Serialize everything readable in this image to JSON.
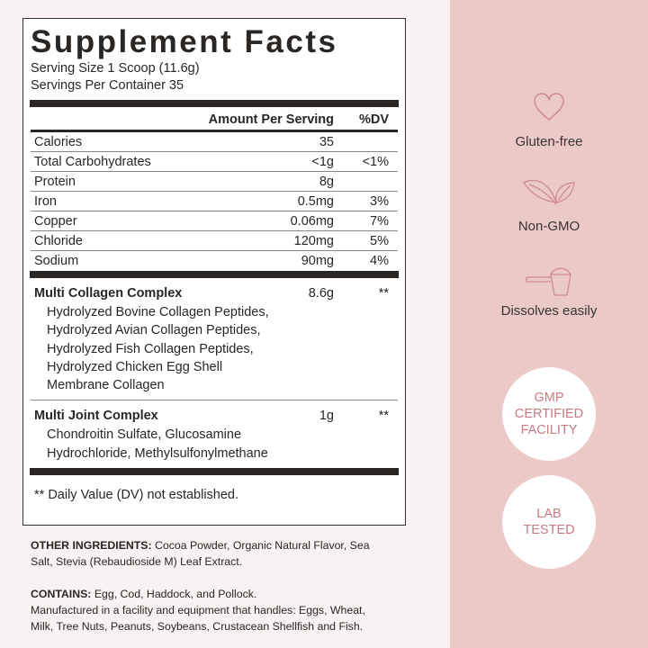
{
  "label": {
    "title": "Supplement Facts",
    "serving_size": "Serving Size 1 Scoop (11.6g)",
    "servings_per_container": "Servings Per Container 35",
    "header": {
      "amount": "Amount Per Serving",
      "dv": "%DV"
    },
    "nutrients": [
      {
        "name": "Calories",
        "amount": "35",
        "dv": ""
      },
      {
        "name": "Total Carbohydrates",
        "amount": "<1g",
        "dv": "<1%"
      },
      {
        "name": "Protein",
        "amount": "8g",
        "dv": ""
      },
      {
        "name": "Iron",
        "amount": "0.5mg",
        "dv": "3%"
      },
      {
        "name": "Copper",
        "amount": "0.06mg",
        "dv": "7%"
      },
      {
        "name": "Chloride",
        "amount": "120mg",
        "dv": "5%"
      },
      {
        "name": "Sodium",
        "amount": "90mg",
        "dv": "4%"
      }
    ],
    "blends": [
      {
        "name": "Multi Collagen Complex",
        "amount": "8.6g",
        "dv": "**",
        "lines": [
          "Hydrolyzed Bovine Collagen Peptides,",
          "Hydrolyzed Avian Collagen Peptides,",
          "Hydrolyzed Fish Collagen Peptides,",
          "Hydrolyzed Chicken Egg Shell",
          "Membrane Collagen"
        ]
      },
      {
        "name": "Multi Joint Complex",
        "amount": "1g",
        "dv": "**",
        "lines": [
          "Chondroitin Sulfate, Glucosamine",
          "Hydrochloride, Methylsulfonylmethane"
        ]
      }
    ],
    "footnote": "** Daily Value (DV) not established."
  },
  "other_ingredients": {
    "label": "OTHER INGREDIENTS:",
    "lines": [
      "Cocoa Powder, Organic Natural Flavor, Sea",
      "Salt, Stevia (Rebaudioside M) Leaf Extract."
    ]
  },
  "contains": {
    "label": "CONTAINS:",
    "text": "Egg, Cod, Haddock, and Pollock.",
    "lines": [
      "Manufactured in a facility and equipment that handles: Eggs, Wheat,",
      "Milk, Tree Nuts, Peanuts, Soybeans, Crustacean Shellfish and Fish."
    ]
  },
  "features": [
    {
      "icon": "heart-icon",
      "label": "Gluten-free"
    },
    {
      "icon": "leaves-icon",
      "label": "Non-GMO"
    },
    {
      "icon": "scoop-icon",
      "label": "Dissolves easily"
    }
  ],
  "badges": [
    {
      "lines": [
        "GMP",
        "CERTIFIED",
        "FACILITY"
      ]
    },
    {
      "lines": [
        "LAB",
        "TESTED"
      ]
    }
  ],
  "colors": {
    "panel": "#ebc9c6",
    "accent": "#c87a80",
    "background": "#f8f3f2"
  }
}
